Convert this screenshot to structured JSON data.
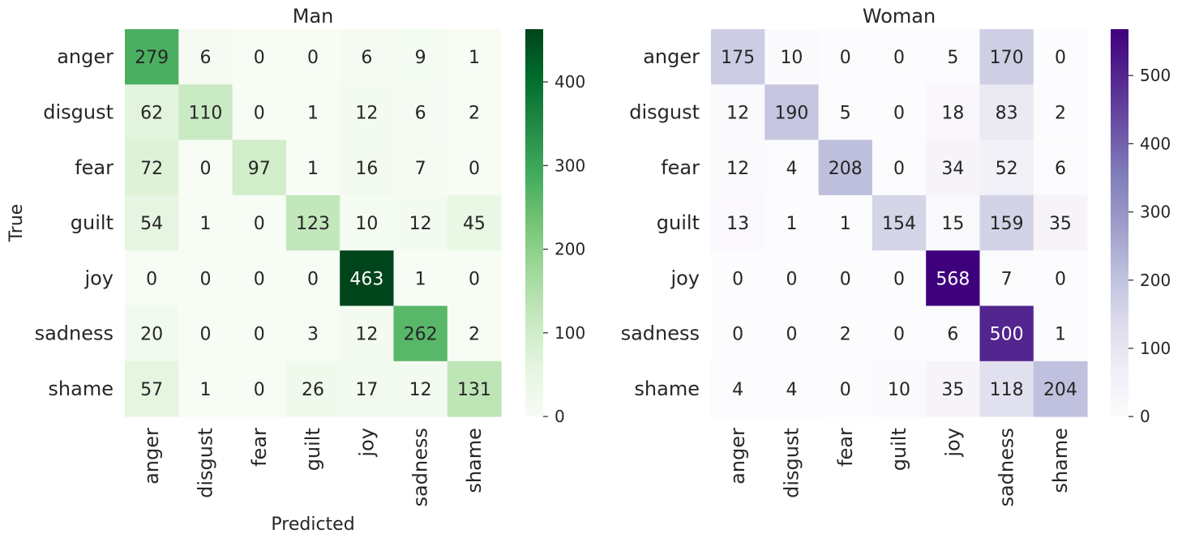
{
  "chart_data": [
    {
      "type": "heatmap",
      "title": "Man",
      "xlabel": "Predicted",
      "ylabel": "True",
      "x_categories": [
        "anger",
        "disgust",
        "fear",
        "guilt",
        "joy",
        "sadness",
        "shame"
      ],
      "y_categories": [
        "anger",
        "disgust",
        "fear",
        "guilt",
        "joy",
        "sadness",
        "shame"
      ],
      "values": [
        [
          279,
          6,
          0,
          0,
          6,
          9,
          1
        ],
        [
          62,
          110,
          0,
          1,
          12,
          6,
          2
        ],
        [
          72,
          0,
          97,
          1,
          16,
          7,
          0
        ],
        [
          54,
          1,
          0,
          123,
          10,
          12,
          45
        ],
        [
          0,
          0,
          0,
          0,
          463,
          1,
          0
        ],
        [
          20,
          0,
          0,
          3,
          12,
          262,
          2
        ],
        [
          57,
          1,
          0,
          26,
          17,
          12,
          131
        ]
      ],
      "colormap": "Greens",
      "colorbar_ticks": [
        "0",
        "100",
        "200",
        "300",
        "400"
      ],
      "colorbar_range": [
        0,
        463
      ]
    },
    {
      "type": "heatmap",
      "title": "Woman",
      "xlabel": "",
      "ylabel": "",
      "x_categories": [
        "anger",
        "disgust",
        "fear",
        "guilt",
        "joy",
        "sadness",
        "shame"
      ],
      "y_categories": [
        "anger",
        "disgust",
        "fear",
        "guilt",
        "joy",
        "sadness",
        "shame"
      ],
      "values": [
        [
          175,
          10,
          0,
          0,
          5,
          170,
          0
        ],
        [
          12,
          190,
          5,
          0,
          18,
          83,
          2
        ],
        [
          12,
          4,
          208,
          0,
          34,
          52,
          6
        ],
        [
          13,
          1,
          1,
          154,
          15,
          159,
          35
        ],
        [
          0,
          0,
          0,
          0,
          568,
          7,
          0
        ],
        [
          0,
          0,
          2,
          0,
          6,
          500,
          1
        ],
        [
          4,
          4,
          0,
          10,
          35,
          118,
          204
        ]
      ],
      "colormap": "Purples",
      "colorbar_ticks": [
        "0",
        "100",
        "200",
        "300",
        "400",
        "500"
      ],
      "colorbar_range": [
        0,
        568
      ]
    }
  ]
}
